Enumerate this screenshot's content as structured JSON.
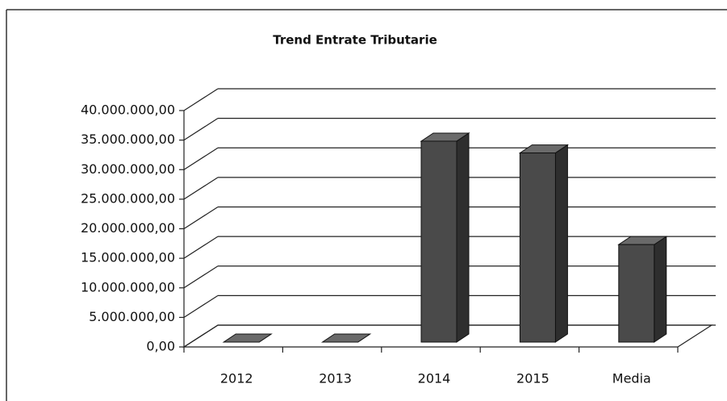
{
  "chart_data": {
    "type": "bar3d",
    "title": "Trend Entrate Tributarie",
    "categories": [
      "2012",
      "2013",
      "2014",
      "2015",
      "Media"
    ],
    "values": [
      0,
      0,
      34000000,
      32000000,
      16500000
    ],
    "color": "#4a4a4a",
    "ylim": [
      0,
      40000000
    ],
    "yticks": [
      {
        "value": 0,
        "label": "0,00"
      },
      {
        "value": 5000000,
        "label": "5.000.000,00"
      },
      {
        "value": 10000000,
        "label": "10.000.000,00"
      },
      {
        "value": 15000000,
        "label": "15.000.000,00"
      },
      {
        "value": 20000000,
        "label": "20.000.000,00"
      },
      {
        "value": 25000000,
        "label": "25.000.000,00"
      },
      {
        "value": 30000000,
        "label": "30.000.000,00"
      },
      {
        "value": 35000000,
        "label": "35.000.000,00"
      },
      {
        "value": 40000000,
        "label": "40.000.000,00"
      }
    ],
    "grid": true
  }
}
